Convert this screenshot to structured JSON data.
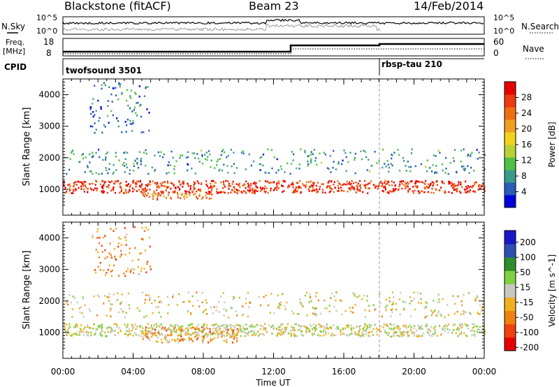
{
  "header": {
    "station": "Blackstone (fitACF)",
    "beam": "Beam 23",
    "date": "14/Feb/2014"
  },
  "noise_panel": {
    "left_label": "N.Sky",
    "right_label": "N.Search",
    "left_ticks": [
      "10^5",
      "10^0"
    ],
    "right_ticks": [
      "10^5",
      "10^0"
    ]
  },
  "freq_panel": {
    "left_label_line1": "Freq.",
    "left_label_line2": "[MHz]",
    "left_ticks": [
      "18",
      "8"
    ],
    "right_label": "Nave",
    "right_ticks": [
      "60",
      "0"
    ]
  },
  "cpid_panel": {
    "label": "CPID",
    "programs": [
      {
        "name": "twofsound 3501",
        "start_hour": 0
      },
      {
        "name": "rbsp-tau 210",
        "start_hour": 18
      }
    ]
  },
  "colors": {
    "power_scale": [
      "#0000dd",
      "#2a5cb8",
      "#3a9a8a",
      "#4fc043",
      "#b8d234",
      "#f2d21e",
      "#f0a020",
      "#f07010",
      "#ef3a10",
      "#e60000"
    ],
    "velocity_scale": [
      "#e60000",
      "#f04010",
      "#f08010",
      "#f0b020",
      "#c8c8c0",
      "#7fd040",
      "#2e8e2e",
      "#3050b0",
      "#1818c8"
    ]
  },
  "chart_data": [
    {
      "type": "heatmap",
      "title": "Power [dB]",
      "xlabel": "Time UT",
      "ylabel": "Slant Range [km]",
      "xlim": [
        0,
        24
      ],
      "ylim": [
        180,
        4500
      ],
      "x_ticks": [
        "00:00",
        "04:00",
        "08:00",
        "12:00",
        "16:00",
        "20:00",
        "00:00"
      ],
      "y_ticks": [
        1000,
        2000,
        3000,
        4000
      ],
      "colorbar": {
        "label": "Power [dB]",
        "range": [
          0,
          32
        ],
        "ticks": [
          4,
          8,
          12,
          16,
          20,
          24,
          28
        ]
      },
      "regions": [
        {
          "feature": "ground scatter band",
          "start_hour": 0,
          "end_hour": 24,
          "range_km": [
            900,
            1300
          ],
          "power_db": 28
        },
        {
          "feature": "near-range echoes",
          "start_hour": 4.5,
          "end_hour": 8.5,
          "range_km": [
            700,
            900
          ],
          "power_db": 24
        },
        {
          "feature": "mid-range scatter",
          "start_hour": 0,
          "end_hour": 24,
          "range_km": [
            1500,
            2300
          ],
          "power_db": 8
        },
        {
          "feature": "far-range scatter",
          "start_hour": 1.5,
          "end_hour": 5,
          "range_km": [
            2800,
            4400
          ],
          "power_db": 6
        }
      ]
    },
    {
      "type": "heatmap",
      "title": "Velocity [m s^-1]",
      "xlabel": "Time UT",
      "ylabel": "Slant Range [km]",
      "xlim": [
        0,
        24
      ],
      "ylim": [
        180,
        4500
      ],
      "x_ticks": [
        "00:00",
        "04:00",
        "08:00",
        "12:00",
        "16:00",
        "20:00",
        "00:00"
      ],
      "y_ticks": [
        1000,
        2000,
        3000,
        4000
      ],
      "colorbar": {
        "label": "Velocity [m s^-1]",
        "range": [
          -250,
          250
        ],
        "ticks": [
          200,
          100,
          50,
          15,
          -15,
          -50,
          -100,
          -200
        ]
      },
      "regions": [
        {
          "feature": "ground scatter band",
          "start_hour": 0,
          "end_hour": 24,
          "range_km": [
            900,
            1300
          ],
          "velocity": 0
        },
        {
          "feature": "near-range echoes",
          "start_hour": 4.5,
          "end_hour": 10,
          "range_km": [
            700,
            1200
          ],
          "velocity": -80
        },
        {
          "feature": "mid-range scatter",
          "start_hour": 0,
          "end_hour": 24,
          "range_km": [
            1500,
            2300
          ],
          "velocity": -20
        },
        {
          "feature": "far-range scatter",
          "start_hour": 1.5,
          "end_hour": 5,
          "range_km": [
            2800,
            4400
          ],
          "velocity": -100
        }
      ]
    }
  ]
}
